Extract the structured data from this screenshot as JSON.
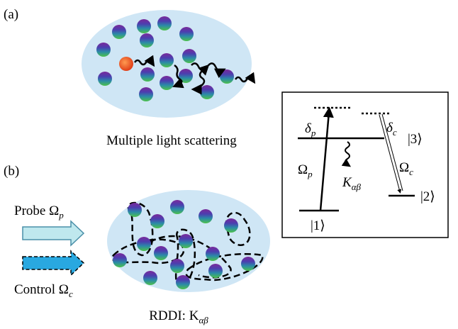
{
  "panel_a": {
    "label": "(a)",
    "caption": "Multiple light scattering"
  },
  "panel_b": {
    "label": "(b)",
    "probe": {
      "text": "Probe Ω",
      "sub": "p"
    },
    "control": {
      "text": "Control Ω",
      "sub": "c"
    },
    "caption": {
      "text": "RDDI: K",
      "sub": "αβ"
    }
  },
  "level_scheme": {
    "delta_p": {
      "text": "δ",
      "sub": "p"
    },
    "delta_c": {
      "text": "δ",
      "sub": "c"
    },
    "state_3": "|3⟩",
    "state_2": "|2⟩",
    "state_1": "|1⟩",
    "omega_p": {
      "text": "Ω",
      "sub": "p"
    },
    "omega_c": {
      "text": "Ω",
      "sub": "c"
    },
    "kappa": {
      "text": "K",
      "sub": "αβ"
    }
  }
}
